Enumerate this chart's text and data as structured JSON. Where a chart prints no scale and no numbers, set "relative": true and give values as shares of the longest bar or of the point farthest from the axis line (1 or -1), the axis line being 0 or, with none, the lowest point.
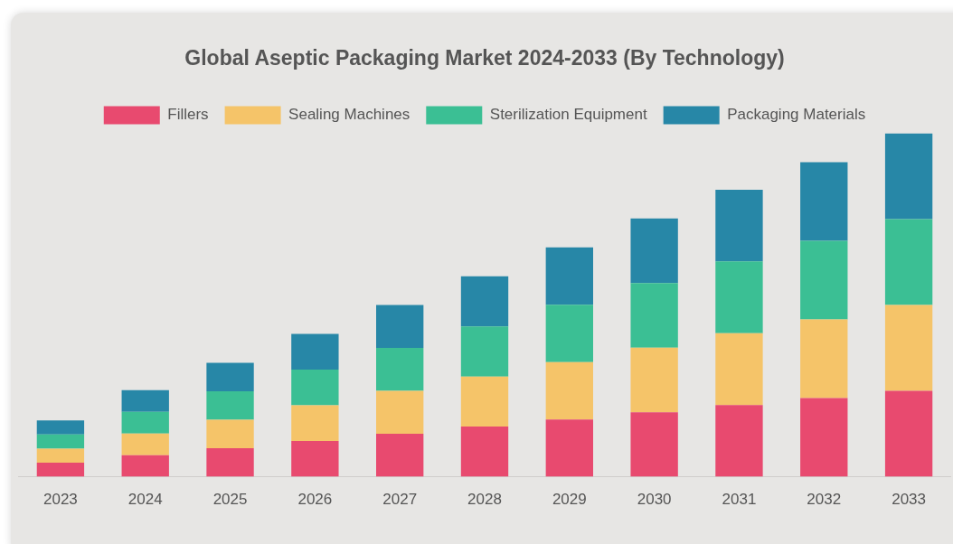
{
  "chart_data": {
    "type": "bar",
    "title": "Global Aseptic Packaging Market 2024-2033 (By Technology)",
    "categories": [
      "2023",
      "2024",
      "2025",
      "2026",
      "2027",
      "2028",
      "2029",
      "2030",
      "2031",
      "2032",
      "2033"
    ],
    "stacked": true,
    "relative": true,
    "legend": "top",
    "series": [
      {
        "name": "Fillers",
        "color": "#e84a6f",
        "values": [
          0.041,
          0.063,
          0.083,
          0.104,
          0.125,
          0.146,
          0.167,
          0.188,
          0.209,
          0.229,
          0.25
        ]
      },
      {
        "name": "Sealing Machines",
        "color": "#f5c469",
        "values": [
          0.041,
          0.063,
          0.083,
          0.104,
          0.125,
          0.146,
          0.167,
          0.188,
          0.209,
          0.229,
          0.25
        ]
      },
      {
        "name": "Sterilization Equipment",
        "color": "#3bbf94",
        "values": [
          0.041,
          0.063,
          0.083,
          0.104,
          0.125,
          0.146,
          0.167,
          0.188,
          0.209,
          0.229,
          0.25
        ]
      },
      {
        "name": "Packaging Materials",
        "color": "#2787a7",
        "values": [
          0.041,
          0.063,
          0.083,
          0.104,
          0.125,
          0.146,
          0.167,
          0.188,
          0.209,
          0.229,
          0.25
        ]
      }
    ]
  }
}
